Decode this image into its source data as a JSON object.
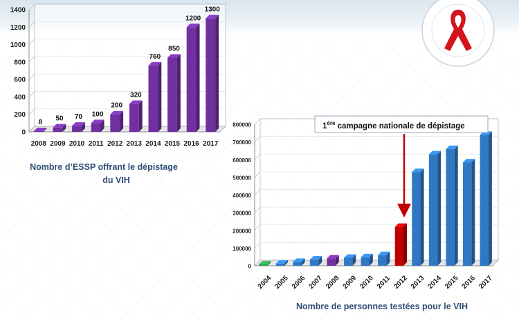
{
  "chart_data": [
    {
      "type": "bar",
      "title": "Nombre d’ESSP offrant le dépistage du VIH",
      "title_lines": [
        "Nombre d’ESSP offrant le dépistage",
        "du VIH"
      ],
      "categories": [
        "2008",
        "2009",
        "2010",
        "2011",
        "2012",
        "2013",
        "2014",
        "2015",
        "2016",
        "2017"
      ],
      "values": [
        8,
        50,
        70,
        100,
        200,
        320,
        760,
        850,
        1200,
        1300
      ],
      "data_labels": [
        "8",
        "50",
        "70",
        "100",
        "200",
        "320",
        "760",
        "850",
        "1200",
        "1300"
      ],
      "yticks": [
        "0",
        "200",
        "400",
        "600",
        "800",
        "1000",
        "1200",
        "1400"
      ],
      "ylim": [
        0,
        1400
      ],
      "grid": true,
      "bar_color": "#7030a0"
    },
    {
      "type": "bar",
      "title": "Nombre de personnes testées pour le VIH",
      "categories": [
        "2004",
        "2005",
        "2006",
        "2007",
        "2008",
        "2009",
        "2010",
        "2011",
        "2012",
        "2013",
        "2014",
        "2015",
        "2016",
        "2017"
      ],
      "values": [
        8000,
        12000,
        22000,
        35000,
        42000,
        45000,
        48000,
        60000,
        220000,
        530000,
        630000,
        660000,
        585000,
        740000
      ],
      "bar_colors": [
        "#2e9e4f",
        "#2f79c4",
        "#2f79c4",
        "#2f79c4",
        "#7030a0",
        "#2f79c4",
        "#2f79c4",
        "#2f79c4",
        "#c00000",
        "#2f79c4",
        "#2f79c4",
        "#2f79c4",
        "#2f79c4",
        "#2f79c4"
      ],
      "yticks": [
        "0",
        "100000",
        "200000",
        "300000",
        "400000",
        "500000",
        "600000",
        "700000",
        "800000"
      ],
      "ylim": [
        0,
        800000
      ],
      "grid": true,
      "annotation": {
        "superscript": "ère",
        "prefix": "1",
        "text": " campagne nationale de dépistage",
        "points_to": "2012"
      }
    }
  ]
}
